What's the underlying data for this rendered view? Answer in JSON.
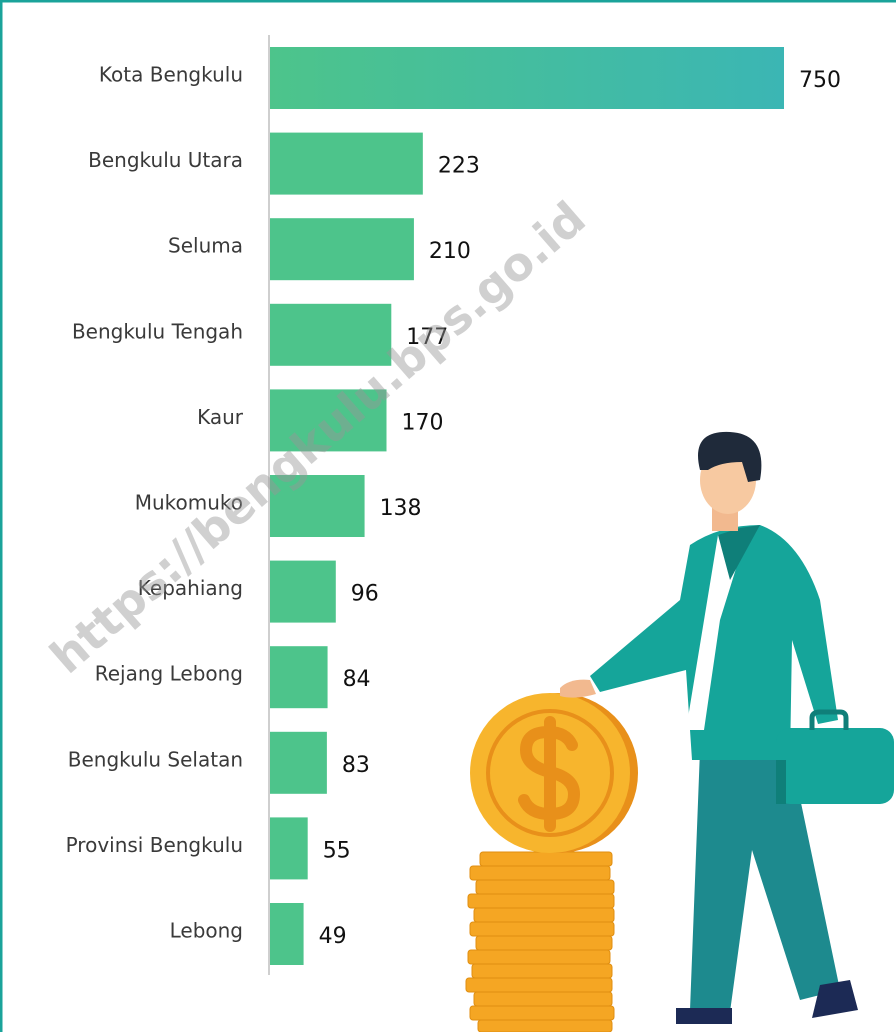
{
  "chart_data": {
    "type": "bar",
    "orientation": "horizontal",
    "categories": [
      "Kota Bengkulu",
      "Bengkulu Utara",
      "Seluma",
      "Bengkulu Tengah",
      "Kaur",
      "Mukomuko",
      "Kepahiang",
      "Rejang Lebong",
      "Bengkulu Selatan",
      "Provinsi Bengkulu",
      "Lebong"
    ],
    "values": [
      750,
      223,
      210,
      177,
      170,
      138,
      96,
      84,
      83,
      55,
      49
    ],
    "color": "#4dc48b",
    "highlight_color": "#3bb6b4",
    "watermark": "https://bengkulu.bps.go.id"
  }
}
